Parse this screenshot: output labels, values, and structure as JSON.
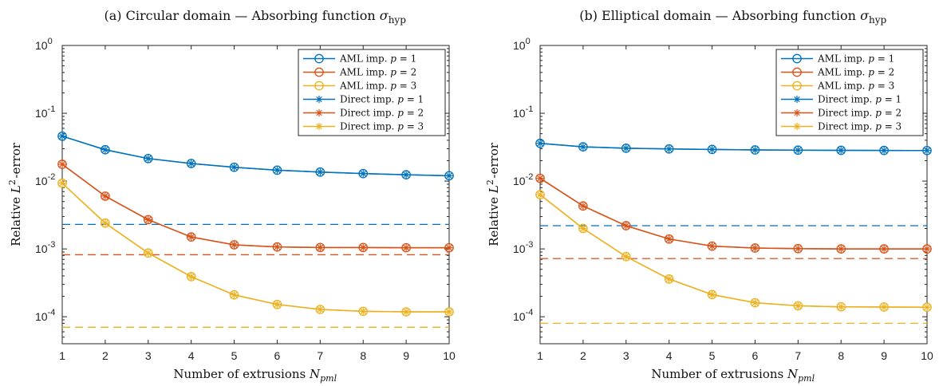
{
  "chart_data": [
    {
      "type": "line",
      "title": "(a) Circular domain — Absorbing function σ_hyp",
      "xlabel": "Number of extrusions N_pml",
      "ylabel": "Relative L²-error",
      "yscale": "log",
      "xlim": [
        1,
        10
      ],
      "ylim": [
        4e-05,
        1
      ],
      "grid": false,
      "legend_position": "top-right",
      "x": [
        1,
        2,
        3,
        4,
        5,
        6,
        7,
        8,
        9,
        10
      ],
      "xticks": [
        "1",
        "2",
        "3",
        "4",
        "5",
        "6",
        "7",
        "8",
        "9",
        "10"
      ],
      "yticks": [
        {
          "base": "10",
          "exp": "0",
          "value": 1
        },
        {
          "base": "10",
          "exp": "-1",
          "value": 0.1
        },
        {
          "base": "10",
          "exp": "-2",
          "value": 0.01
        },
        {
          "base": "10",
          "exp": "-3",
          "value": 0.001
        },
        {
          "base": "10",
          "exp": "-4",
          "value": 0.0001
        }
      ],
      "series": [
        {
          "name": "AML imp. p = 1",
          "color": "#0072BD",
          "marker": "circle",
          "values": [
            0.046,
            0.029,
            0.0215,
            0.0182,
            0.016,
            0.0145,
            0.0136,
            0.0129,
            0.0124,
            0.012
          ]
        },
        {
          "name": "AML imp. p = 2",
          "color": "#D95319",
          "marker": "circle",
          "values": [
            0.0177,
            0.006,
            0.0027,
            0.0015,
            0.00115,
            0.00107,
            0.00105,
            0.00105,
            0.00104,
            0.00104
          ]
        },
        {
          "name": "AML imp. p = 3",
          "color": "#EDB120",
          "marker": "circle",
          "values": [
            0.0093,
            0.0024,
            0.00087,
            0.00039,
            0.00021,
            0.000152,
            0.000128,
            0.00012,
            0.000118,
            0.000118
          ]
        },
        {
          "name": "Direct imp. p = 1",
          "color": "#0072BD",
          "marker": "asterisk",
          "values": [
            0.046,
            0.029,
            0.0215,
            0.0182,
            0.016,
            0.0145,
            0.0136,
            0.0129,
            0.0124,
            0.012
          ]
        },
        {
          "name": "Direct imp. p = 2",
          "color": "#D95319",
          "marker": "asterisk",
          "values": [
            0.0177,
            0.006,
            0.0027,
            0.0015,
            0.00115,
            0.00107,
            0.00105,
            0.00105,
            0.00104,
            0.00104
          ]
        },
        {
          "name": "Direct imp. p = 3",
          "color": "#EDB120",
          "marker": "asterisk",
          "values": [
            0.0093,
            0.0024,
            0.00087,
            0.00039,
            0.00021,
            0.000152,
            0.000128,
            0.00012,
            0.000118,
            0.000118
          ]
        }
      ],
      "reference_lines": [
        {
          "color": "#0072BD",
          "value": 0.0023
        },
        {
          "color": "#D95319",
          "value": 0.00082
        },
        {
          "color": "#EDB120",
          "value": 7e-05
        }
      ]
    },
    {
      "type": "line",
      "title": "(b) Elliptical domain — Absorbing function σ_hyp",
      "xlabel": "Number of extrusions N_pml",
      "ylabel": "Relative L²-error",
      "yscale": "log",
      "xlim": [
        1,
        10
      ],
      "ylim": [
        4e-05,
        1
      ],
      "grid": false,
      "legend_position": "top-right",
      "x": [
        1,
        2,
        3,
        4,
        5,
        6,
        7,
        8,
        9,
        10
      ],
      "xticks": [
        "1",
        "2",
        "3",
        "4",
        "5",
        "6",
        "7",
        "8",
        "9",
        "10"
      ],
      "yticks": [
        {
          "base": "10",
          "exp": "0",
          "value": 1
        },
        {
          "base": "10",
          "exp": "-1",
          "value": 0.1
        },
        {
          "base": "10",
          "exp": "-2",
          "value": 0.01
        },
        {
          "base": "10",
          "exp": "-3",
          "value": 0.001
        },
        {
          "base": "10",
          "exp": "-4",
          "value": 0.0001
        }
      ],
      "series": [
        {
          "name": "AML imp. p = 1",
          "color": "#0072BD",
          "marker": "circle",
          "values": [
            0.036,
            0.032,
            0.0305,
            0.0298,
            0.0293,
            0.0288,
            0.0286,
            0.0284,
            0.0283,
            0.0282
          ]
        },
        {
          "name": "AML imp. p = 2",
          "color": "#D95319",
          "marker": "circle",
          "values": [
            0.011,
            0.0043,
            0.0022,
            0.0014,
            0.0011,
            0.00103,
            0.00101,
            0.001,
            0.001,
            0.001
          ]
        },
        {
          "name": "AML imp. p = 3",
          "color": "#EDB120",
          "marker": "circle",
          "values": [
            0.0063,
            0.002,
            0.00077,
            0.00036,
            0.000212,
            0.000161,
            0.000145,
            0.00014,
            0.000139,
            0.000138
          ]
        },
        {
          "name": "Direct imp. p = 1",
          "color": "#0072BD",
          "marker": "asterisk",
          "values": [
            0.036,
            0.032,
            0.0305,
            0.0298,
            0.0293,
            0.0288,
            0.0286,
            0.0284,
            0.0283,
            0.0282
          ]
        },
        {
          "name": "Direct imp. p = 2",
          "color": "#D95319",
          "marker": "asterisk",
          "values": [
            0.011,
            0.0043,
            0.0022,
            0.0014,
            0.0011,
            0.00103,
            0.00101,
            0.001,
            0.001,
            0.001
          ]
        },
        {
          "name": "Direct imp. p = 3",
          "color": "#EDB120",
          "marker": "asterisk",
          "values": [
            0.0063,
            0.002,
            0.00077,
            0.00036,
            0.000212,
            0.000161,
            0.000145,
            0.00014,
            0.000139,
            0.000138
          ]
        }
      ],
      "reference_lines": [
        {
          "color": "#0072BD",
          "value": 0.0022
        },
        {
          "color": "#D95319",
          "value": 0.00072
        },
        {
          "color": "#EDB120",
          "value": 8e-05
        }
      ]
    }
  ]
}
